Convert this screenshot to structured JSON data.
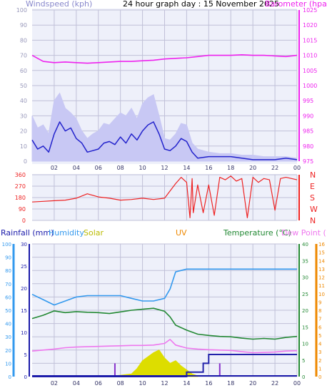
{
  "header": {
    "title": "24 hour graph day : 15 November 2025",
    "wind_label": "Windspeed (kph)",
    "baro_label": "Barometer (hpa)"
  },
  "colors": {
    "wind_avg": "#2222cc",
    "wind_gust": "#c8c8f4",
    "barometer": "#ee22ee",
    "direction": "#ee2222",
    "rain_rate": "#2222aa",
    "rain_total": "#2222aa",
    "humidity": "#3399ee",
    "temperature": "#228833",
    "dewpoint": "#ee77ee",
    "solar": "#dddd00",
    "uv": "#ee8800",
    "grid": "#c0c0d8",
    "panel_bg": "#eef0fa"
  },
  "x_ticks": [
    "02",
    "04",
    "06",
    "08",
    "10",
    "12",
    "14",
    "16",
    "18",
    "20",
    "22",
    "00"
  ],
  "chart_data": [
    {
      "type": "line",
      "name": "wind-baro",
      "x_hours": [
        0,
        24
      ],
      "left_axis": {
        "label": "Windspeed (kph)",
        "ylim": [
          0,
          100
        ],
        "ticks": [
          0,
          10,
          20,
          30,
          40,
          50,
          60,
          70,
          80,
          90,
          100
        ]
      },
      "right_axis": {
        "label": "Barometer (hpa)",
        "ylim": [
          975,
          1025
        ],
        "ticks": [
          975,
          980,
          985,
          990,
          995,
          1000,
          1005,
          1010,
          1015,
          1020,
          1025
        ]
      },
      "series": [
        {
          "key": "gust",
          "axis": "left",
          "x": [
            0,
            0.5,
            1,
            1.5,
            2,
            2.5,
            3,
            3.5,
            4,
            4.5,
            5,
            5.5,
            6,
            6.5,
            7,
            7.5,
            8,
            8.5,
            9,
            9.5,
            10,
            10.5,
            11,
            11.5,
            12,
            12.5,
            13,
            13.5,
            14,
            14.5,
            15,
            16,
            17,
            18,
            19,
            20,
            21,
            22,
            23,
            24
          ],
          "y": [
            30,
            22,
            24,
            18,
            40,
            45,
            35,
            32,
            28,
            20,
            15,
            18,
            20,
            25,
            24,
            28,
            32,
            30,
            35,
            28,
            38,
            42,
            44,
            30,
            15,
            14,
            18,
            25,
            24,
            12,
            8,
            6,
            5,
            5,
            4,
            4,
            3,
            3,
            3,
            2
          ]
        },
        {
          "key": "avg",
          "axis": "left",
          "x": [
            0,
            0.5,
            1,
            1.5,
            2,
            2.5,
            3,
            3.5,
            4,
            4.5,
            5,
            5.5,
            6,
            6.5,
            7,
            7.5,
            8,
            8.5,
            9,
            9.5,
            10,
            10.5,
            11,
            11.5,
            12,
            12.5,
            13,
            13.5,
            14,
            14.5,
            15,
            16,
            17,
            18,
            19,
            20,
            21,
            22,
            23,
            24
          ],
          "y": [
            14,
            8,
            10,
            6,
            18,
            26,
            20,
            22,
            15,
            12,
            6,
            7,
            8,
            12,
            13,
            11,
            16,
            12,
            18,
            14,
            20,
            24,
            26,
            18,
            8,
            7,
            10,
            15,
            13,
            6,
            2,
            3,
            3,
            3,
            2,
            1,
            1,
            1,
            2,
            1
          ]
        },
        {
          "key": "barometer",
          "axis": "right",
          "x": [
            0,
            1,
            2,
            3,
            4,
            5,
            6,
            7,
            8,
            9,
            10,
            11,
            12,
            13,
            14,
            15,
            16,
            17,
            18,
            19,
            20,
            21,
            22,
            23,
            24
          ],
          "y": [
            1010,
            1008,
            1007.6,
            1007.8,
            1007.6,
            1007.4,
            1007.6,
            1007.8,
            1008,
            1008,
            1008.2,
            1008.4,
            1008.8,
            1009,
            1009.2,
            1009.6,
            1010,
            1010,
            1010,
            1010.2,
            1010,
            1010,
            1009.8,
            1009.6,
            1010
          ]
        }
      ]
    },
    {
      "type": "line",
      "name": "wind-direction",
      "left_axis": {
        "ylim": [
          0,
          360
        ],
        "ticks": [
          0,
          90,
          180,
          270,
          360
        ]
      },
      "right_axis": {
        "ticks": [
          "N",
          "W",
          "S",
          "E",
          "N"
        ]
      },
      "series": [
        {
          "key": "direction",
          "x": [
            0,
            1,
            2,
            3,
            4,
            5,
            6,
            7,
            8,
            9,
            10,
            11,
            12,
            13,
            13.5,
            14,
            14.3,
            14.5,
            14.6,
            15,
            15.5,
            16,
            16.5,
            17,
            17.5,
            18,
            18.5,
            19,
            19.5,
            20,
            20.5,
            21,
            21.5,
            22,
            22.5,
            23,
            23.5,
            24
          ],
          "y": [
            145,
            150,
            155,
            160,
            175,
            210,
            185,
            175,
            160,
            165,
            175,
            165,
            175,
            290,
            340,
            300,
            20,
            330,
            60,
            280,
            60,
            280,
            40,
            340,
            320,
            350,
            310,
            330,
            20,
            340,
            300,
            330,
            320,
            80,
            330,
            340,
            330,
            320
          ]
        }
      ]
    },
    {
      "type": "line",
      "name": "temperature-humidity-rain",
      "axes": {
        "humidity": {
          "label": "Humidity",
          "ylim": [
            0,
            100
          ],
          "ticks": [
            0,
            10,
            20,
            30,
            40,
            50,
            60,
            70,
            80,
            90,
            100
          ]
        },
        "rainfall": {
          "label": "Rainfall (mm)",
          "ylim": [
            0,
            30
          ],
          "ticks": [
            0,
            5,
            10,
            15,
            20,
            25,
            30
          ]
        },
        "temperature": {
          "label": "Temperature (°C)",
          "ylim": [
            0,
            40
          ],
          "ticks": [
            0,
            5,
            10,
            15,
            20,
            25,
            30,
            35,
            40
          ]
        },
        "uv": {
          "label": "UV",
          "ylim": [
            0,
            16
          ],
          "ticks": [
            0,
            1,
            2,
            3,
            4,
            5,
            6,
            7,
            8,
            9,
            10,
            11,
            12,
            13,
            14,
            15,
            16
          ]
        },
        "solar": {
          "label": "Solar"
        },
        "dewpoint": {
          "label": "Dew Point (°C)"
        }
      },
      "series": [
        {
          "key": "humidity",
          "x": [
            0,
            1,
            2,
            3,
            4,
            5,
            6,
            7,
            8,
            9,
            10,
            11,
            12,
            12.5,
            13,
            14,
            15,
            16,
            17,
            18,
            19,
            20,
            21,
            22,
            23,
            24
          ],
          "y": [
            62,
            58,
            54,
            57,
            60,
            61,
            61,
            61,
            61,
            59,
            57,
            57,
            59,
            66,
            79,
            81,
            81,
            81,
            81,
            81,
            81,
            81,
            81,
            81,
            81,
            81
          ]
        },
        {
          "key": "temperature",
          "x": [
            0,
            1,
            2,
            3,
            4,
            5,
            6,
            7,
            8,
            9,
            10,
            11,
            12,
            12.5,
            13,
            14,
            15,
            16,
            17,
            18,
            19,
            20,
            21,
            22,
            23,
            24
          ],
          "y": [
            17.5,
            18.5,
            19.8,
            19.3,
            19.6,
            19.4,
            19.3,
            19.0,
            19.5,
            20.0,
            20.3,
            20.6,
            19.7,
            18,
            15.5,
            14,
            12.8,
            12.4,
            12.1,
            12.0,
            11.6,
            11.3,
            11.5,
            11.3,
            11.8,
            12.1
          ]
        },
        {
          "key": "dewpoint",
          "x": [
            0,
            1,
            2,
            3,
            4,
            5,
            6,
            7,
            8,
            9,
            10,
            11,
            12,
            12.5,
            13,
            14,
            15,
            16,
            17,
            18,
            19,
            20,
            21,
            22,
            23,
            24
          ],
          "y": [
            7.7,
            8.0,
            8.3,
            8.7,
            8.9,
            9.0,
            9.1,
            9.2,
            9.3,
            9.4,
            9.4,
            9.5,
            10.0,
            11.2,
            9.5,
            8.6,
            8.3,
            8.1,
            8.0,
            7.9,
            7.5,
            7.2,
            7.3,
            7.4,
            7.7,
            7.8
          ]
        },
        {
          "key": "rain_total",
          "x": [
            0,
            13.5,
            14,
            15,
            15.5,
            16,
            24
          ],
          "y": [
            0,
            0,
            1,
            1,
            3,
            5,
            5
          ]
        },
        {
          "key": "solar",
          "x": [
            7,
            8,
            9,
            9.5,
            10,
            10.5,
            11,
            11.5,
            12,
            12.5,
            13,
            13.5,
            14,
            14.5,
            15
          ],
          "y": [
            0.3,
            1,
            2,
            6,
            12,
            15,
            18,
            20,
            14,
            10,
            12,
            8,
            5,
            2,
            0.5
          ]
        },
        {
          "key": "rain_rate_marks",
          "x": [
            7.5,
            17
          ],
          "y": [
            3,
            3
          ]
        }
      ]
    }
  ]
}
